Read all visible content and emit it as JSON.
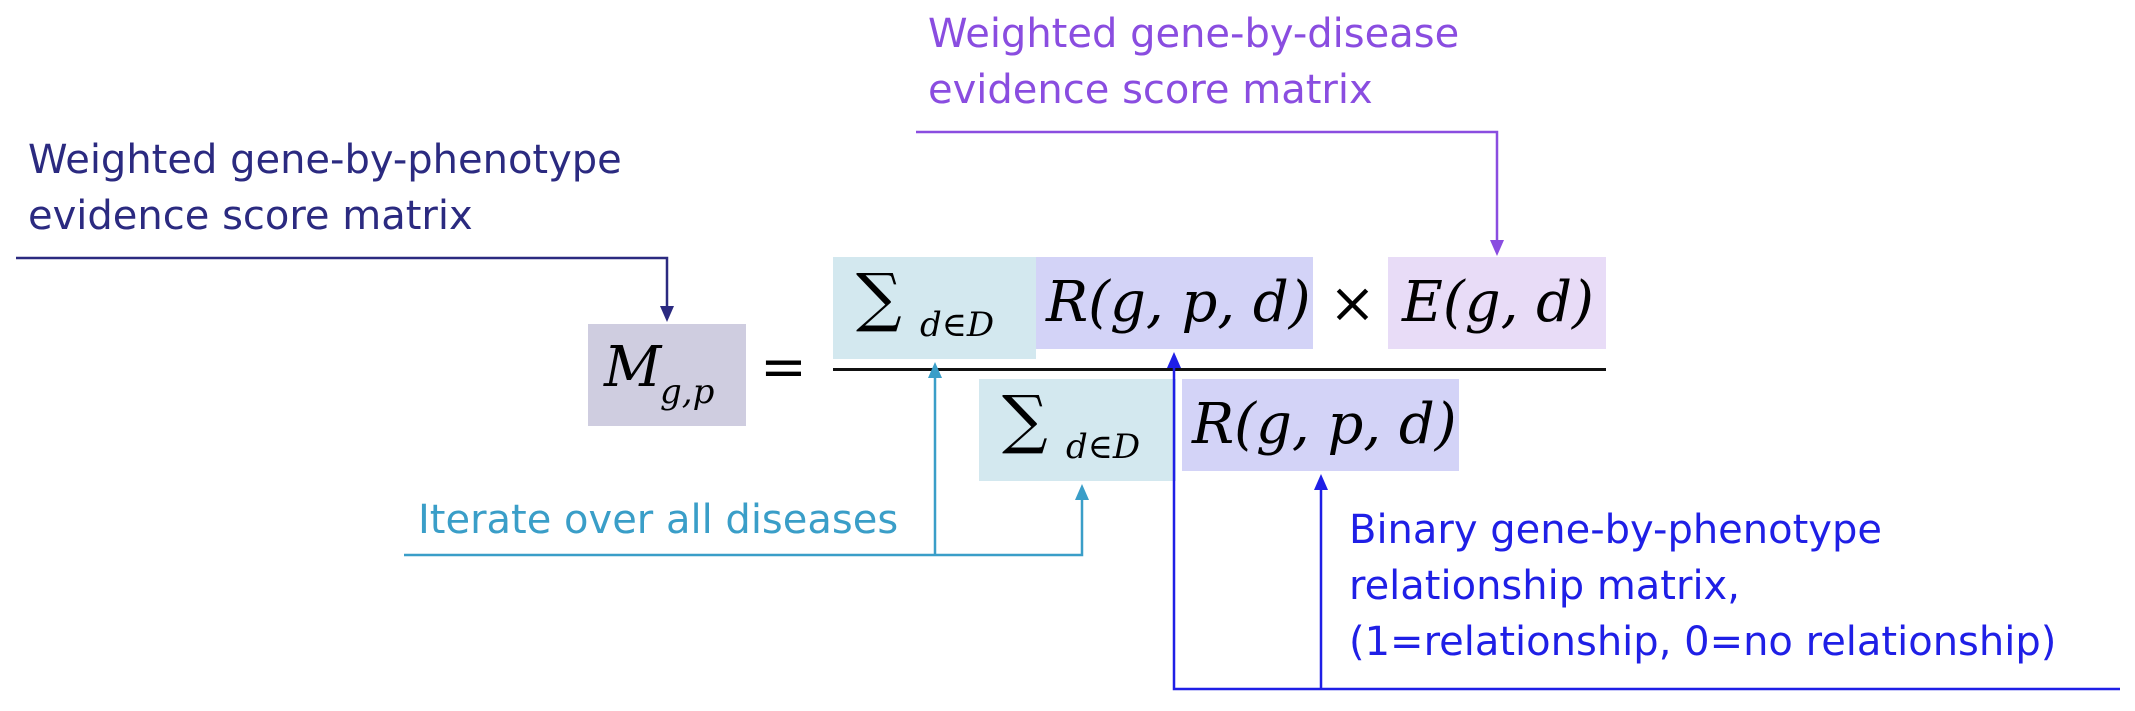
{
  "colors": {
    "navy": "#2b2a80",
    "purple": "#8a4de0",
    "teal": "#3a9ec8",
    "blue": "#1f1fe6",
    "box_m": "#cfcde0",
    "box_sum": "#d3e8ef",
    "box_r": "#d3d3f7",
    "box_e": "#e8dcf7",
    "ink": "#111111"
  },
  "annotations": {
    "phenotype_weighted": [
      "Weighted gene-by-phenotype",
      "evidence score matrix"
    ],
    "disease_weighted": [
      "Weighted gene-by-disease",
      "evidence score matrix"
    ],
    "iterate": "Iterate over all diseases",
    "binary": [
      "Binary gene-by-phenotype",
      "relationship matrix,",
      "(1=relationship, 0=no relationship)"
    ]
  },
  "equation": {
    "lhs_base": "M",
    "lhs_sub": "g,p",
    "equals": "=",
    "sum_sub": "d∈D",
    "r_term": "R(g, p, d)",
    "times": "×",
    "e_term": "E(g, d)"
  }
}
